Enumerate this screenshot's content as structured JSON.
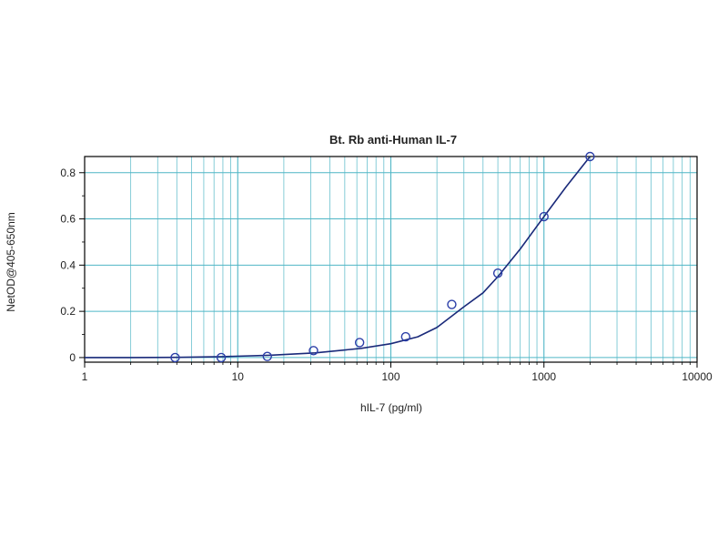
{
  "chart_data": {
    "type": "scatter",
    "title": "Bt. Rb anti-Human IL-7",
    "xlabel": "hIL-7 (pg/ml)",
    "ylabel": "NetOD@405-650nm",
    "x_scale": "log",
    "xlim": [
      1,
      10000
    ],
    "ylim": [
      -0.02,
      0.87
    ],
    "x_ticks": [
      1,
      10,
      100,
      1000,
      10000
    ],
    "x_tick_labels": [
      "1",
      "10",
      "100",
      "1000",
      "10000"
    ],
    "y_ticks": [
      0,
      0.2,
      0.4,
      0.6,
      0.8
    ],
    "y_tick_labels": [
      "0",
      "0.2",
      "0.4",
      "0.6",
      "0.8"
    ],
    "grid": true,
    "series": [
      {
        "points": [
          {
            "x": 3.9,
            "y": 0.0
          },
          {
            "x": 7.8,
            "y": 0.0
          },
          {
            "x": 15.6,
            "y": 0.005
          },
          {
            "x": 31.25,
            "y": 0.03
          },
          {
            "x": 62.5,
            "y": 0.065
          },
          {
            "x": 125,
            "y": 0.09
          },
          {
            "x": 250,
            "y": 0.23
          },
          {
            "x": 500,
            "y": 0.365
          },
          {
            "x": 1000,
            "y": 0.61
          },
          {
            "x": 2000,
            "y": 0.87
          }
        ]
      }
    ],
    "fit_curve": [
      {
        "x": 1,
        "y": 0.0
      },
      {
        "x": 2,
        "y": 0.0
      },
      {
        "x": 4,
        "y": 0.001
      },
      {
        "x": 8,
        "y": 0.004
      },
      {
        "x": 16,
        "y": 0.01
      },
      {
        "x": 32,
        "y": 0.02
      },
      {
        "x": 64,
        "y": 0.04
      },
      {
        "x": 100,
        "y": 0.06
      },
      {
        "x": 150,
        "y": 0.09
      },
      {
        "x": 200,
        "y": 0.13
      },
      {
        "x": 300,
        "y": 0.22
      },
      {
        "x": 400,
        "y": 0.28
      },
      {
        "x": 500,
        "y": 0.35
      },
      {
        "x": 700,
        "y": 0.47
      },
      {
        "x": 1000,
        "y": 0.61
      },
      {
        "x": 1400,
        "y": 0.74
      },
      {
        "x": 2000,
        "y": 0.87
      }
    ],
    "colors": {
      "grid": "#4fb6c6",
      "curve": "#1a2a7a",
      "marker": "#2c3fa8",
      "axis": "#000000"
    }
  }
}
